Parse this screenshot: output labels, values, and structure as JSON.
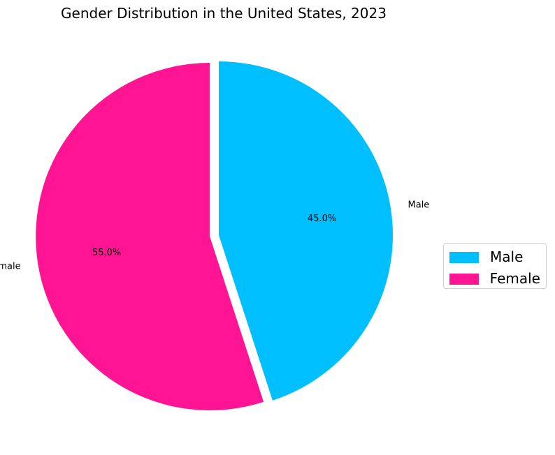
{
  "chart_data": {
    "type": "pie",
    "title": "Gender Distribution in the United States, 2023",
    "categories": [
      "Male",
      "Female"
    ],
    "values": [
      45.0,
      55.0
    ],
    "percent_labels": [
      "45.0%",
      "55.0%"
    ],
    "colors": [
      "#00BFFF",
      "#FF1493"
    ],
    "start_angle_deg": 90,
    "direction": "clockwise",
    "exploded": [
      false,
      true
    ],
    "legend": {
      "placement": "center-right",
      "entries": [
        "Male",
        "Female"
      ]
    }
  }
}
